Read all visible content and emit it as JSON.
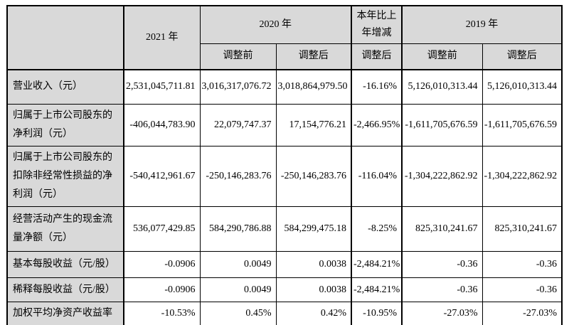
{
  "style": {
    "header_bg": "#d9d9d9",
    "label_col_bg": "#d9d9d9",
    "border_color": "#000000",
    "page_bg": "#ffffff"
  },
  "table": {
    "header": {
      "corner": "",
      "col_2021": "2021 年",
      "col_2020": "2020 年",
      "col_yoy": "本年比上年增减",
      "col_2019": "2019 年",
      "sub_2020_before": "调整前",
      "sub_2020_after": "调整后",
      "sub_yoy_after": "调整后",
      "sub_2019_before": "调整前",
      "sub_2019_after": "调整后"
    },
    "rows": [
      {
        "label": "营业收入（元）",
        "values": [
          "2,531,045,711.81",
          "3,016,317,076.72",
          "3,018,864,979.50",
          "-16.16%",
          "5,126,010,313.44",
          "5,126,010,313.44"
        ]
      },
      {
        "label": "归属于上市公司股东的净利润（元）",
        "values": [
          "-406,044,783.90",
          "22,079,747.37",
          "17,154,776.21",
          "-2,466.95%",
          "-1,611,705,676.59",
          "-1,611,705,676.59"
        ]
      },
      {
        "label": "归属于上市公司股东的扣除非经常性损益的净利润（元）",
        "values": [
          "-540,412,961.67",
          "-250,146,283.76",
          "-250,146,283.76",
          "-116.04%",
          "-1,304,222,862.92",
          "-1,304,222,862.92"
        ]
      },
      {
        "label": "经营活动产生的现金流量净额（元）",
        "values": [
          "536,077,429.85",
          "584,290,786.88",
          "584,299,475.18",
          "-8.25%",
          "825,310,241.67",
          "825,310,241.67"
        ]
      },
      {
        "label": "基本每股收益（元/股）",
        "values": [
          "-0.0906",
          "0.0049",
          "0.0038",
          "-2,484.21%",
          "-0.36",
          "-0.36"
        ]
      },
      {
        "label": "稀释每股收益（元/股）",
        "values": [
          "-0.0906",
          "0.0049",
          "0.0038",
          "-2,484.21%",
          "-0.36",
          "-0.36"
        ]
      },
      {
        "label": "加权平均净资产收益率",
        "values": [
          "-10.53%",
          "0.45%",
          "0.42%",
          "-10.95%",
          "-27.03%",
          "-27.03%"
        ]
      }
    ]
  }
}
